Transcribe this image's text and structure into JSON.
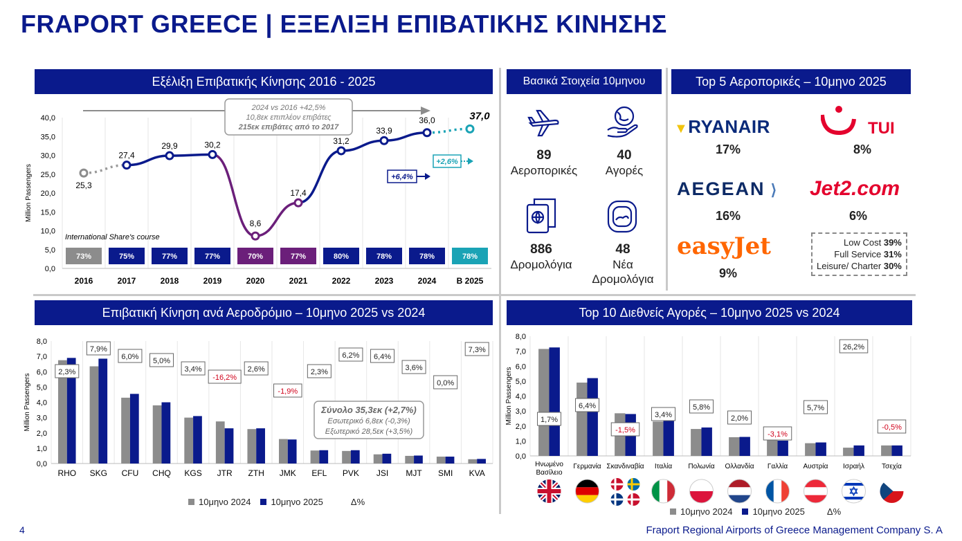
{
  "page_title": "FRAPORT GREECE | ΕΞΕΛΙΞΗ ΕΠΙΒΑΤΙΚΗΣ ΚΙΝΗΣΗΣ",
  "page_number": "4",
  "footer": "Fraport Regional Airports of Greece Management Company S. A",
  "colors": {
    "navy": "#0a1a8c",
    "purple": "#6b1f7a",
    "teal": "#1aa3b5",
    "grey": "#8c8c8c",
    "red": "#d0021b"
  },
  "panels": {
    "evolution_title": "Εξέλιξη Επιβατικής Κίνησης 2016 - 2025",
    "key_stats_title": "Βασικά Στοιχεία 10μηνου",
    "top5_title": "Top 5 Αεροπορικές – 10μηνο 2025",
    "airports_title": "Επιβατική Κίνηση ανά Αεροδρόμιο – 10μηνο 2025 vs 2024",
    "markets_title": "Top 10 Διεθνείς Αγορές – 10μηνο 2025 vs 2024"
  },
  "key_stats": [
    {
      "value": "89",
      "label": "Αεροπορικές",
      "icon": "airplane-icon"
    },
    {
      "value": "40",
      "label": "Αγορές",
      "icon": "globe-hand-icon"
    },
    {
      "value": "886",
      "label": "Δρομολόγια",
      "icon": "passport-icon"
    },
    {
      "value": "48",
      "label": "Νέα Δρομολόγια",
      "icon": "aircraft-window-icon"
    }
  ],
  "airlines": [
    {
      "name": "RYANAIR",
      "share": "17%"
    },
    {
      "name": "TUI",
      "share": "8%"
    },
    {
      "name": "AEGEAN",
      "share": "16%"
    },
    {
      "name": "Jet2.com",
      "share": "6%"
    },
    {
      "name": "easyJet",
      "share": "9%"
    }
  ],
  "segments": [
    {
      "label": "Low Cost",
      "value": "39%"
    },
    {
      "label": "Full Service",
      "value": "31%"
    },
    {
      "label": "Leisure/ Charter",
      "value": "30%"
    }
  ],
  "chart_data": [
    {
      "type": "line",
      "ylabel": "Million Passengers",
      "ylim": [
        0,
        40
      ],
      "yticks": [
        "0,0",
        "5,0",
        "10,0",
        "15,0",
        "20,0",
        "25,0",
        "30,0",
        "35,0",
        "40,0"
      ],
      "categories": [
        "2016",
        "2017",
        "2018",
        "2019",
        "2020",
        "2021",
        "2022",
        "2023",
        "2024",
        "B 2025"
      ],
      "values": [
        25.3,
        27.4,
        29.9,
        30.2,
        8.6,
        17.4,
        31.2,
        33.9,
        36.0,
        37.0
      ],
      "value_labels": [
        "25,3",
        "27,4",
        "29,9",
        "30,2",
        "8,6",
        "17,4",
        "31,2",
        "33,9",
        "36,0",
        "37,0"
      ],
      "intl_share_label": "International Share's course",
      "intl_share": [
        "73%",
        "75%",
        "77%",
        "77%",
        "70%",
        "77%",
        "80%",
        "78%",
        "78%",
        "78%"
      ],
      "callout": [
        "2024 vs 2016 +42,5%",
        "10,8εκ επιπλέον επιβάτες",
        "215εκ επιβάτες από το 2017"
      ],
      "growth_2024": "+6,4%",
      "growth_2025": "+2,6%"
    },
    {
      "type": "bar",
      "ylabel": "Million Passengers",
      "ylim": [
        0,
        8
      ],
      "yticks": [
        "0,0",
        "1,0",
        "2,0",
        "3,0",
        "4,0",
        "5,0",
        "6,0",
        "7,0",
        "8,0"
      ],
      "categories": [
        "RHO",
        "SKG",
        "CFU",
        "CHQ",
        "KGS",
        "JTR",
        "ZTH",
        "JMK",
        "EFL",
        "PVK",
        "JSI",
        "MJT",
        "SMI",
        "KVA"
      ],
      "series": [
        {
          "name": "10μηνο 2024",
          "values": [
            6.75,
            6.35,
            4.3,
            3.8,
            3.0,
            2.75,
            2.25,
            1.6,
            0.85,
            0.82,
            0.6,
            0.5,
            0.45,
            0.28
          ]
        },
        {
          "name": "10μηνο 2025",
          "values": [
            6.9,
            6.85,
            4.55,
            4.0,
            3.1,
            2.3,
            2.3,
            1.57,
            0.87,
            0.87,
            0.64,
            0.52,
            0.45,
            0.3
          ]
        }
      ],
      "deltas": [
        "2,3%",
        "7,9%",
        "6,0%",
        "5,0%",
        "3,4%",
        "-16,2%",
        "2,6%",
        "-1,9%",
        "2,3%",
        "6,2%",
        "6,4%",
        "3,6%",
        "0,0%",
        "7,3%"
      ],
      "delta_label": "Δ%",
      "summary": [
        "Σύνολο 35,3εκ (+2,7%)",
        "Εσωτερικό 6,8εκ (-0,3%)",
        "Εξωτερικό 28,5εκ (+3,5%)"
      ]
    },
    {
      "type": "bar",
      "ylabel": "Million Passengers",
      "ylim": [
        0,
        8
      ],
      "yticks": [
        "0,0",
        "1,0",
        "2,0",
        "3,0",
        "4,0",
        "5,0",
        "6,0",
        "7,0",
        "8,0"
      ],
      "categories": [
        "Ηνωμένο Βασίλειο",
        "Γερμανία",
        "Σκανδιναβία",
        "Ιταλία",
        "Πολωνία",
        "Ολλανδία",
        "Γαλλία",
        "Αυστρία",
        "Ισραήλ",
        "Τσεχία"
      ],
      "series": [
        {
          "name": "10μηνο 2024",
          "values": [
            7.15,
            4.9,
            2.85,
            2.3,
            1.8,
            1.25,
            1.05,
            0.85,
            0.55,
            0.7
          ]
        },
        {
          "name": "10μηνο 2025",
          "values": [
            7.25,
            5.2,
            2.8,
            2.35,
            1.9,
            1.27,
            1.02,
            0.9,
            0.7,
            0.7
          ]
        }
      ],
      "deltas": [
        "1,7%",
        "6,4%",
        "-1,5%",
        "3,4%",
        "5,8%",
        "2,0%",
        "-3,1%",
        "5,7%",
        "26,2%",
        "-0,5%"
      ],
      "delta_label": "Δ%"
    }
  ]
}
